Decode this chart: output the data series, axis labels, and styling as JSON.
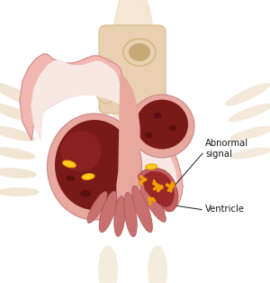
{
  "bg_color": "#ffffff",
  "heart_pink": "#f0b8b0",
  "heart_pink_light": "#f5ccc8",
  "heart_wall": "#e8a8a0",
  "chamber_dark_red": "#7a1a18",
  "chamber_med_red": "#9a2820",
  "chamber_fill": "#b84040",
  "pink_wall": "#dda0a0",
  "muscle_red": "#c05050",
  "muscle_dark": "#8a2828",
  "vessel_cream": "#e8d0b0",
  "vessel_inner": "#c8a878",
  "vessel_rim": "#d4b888",
  "yellow_signal": "#f0a000",
  "yellow_bright": "#ffcc20",
  "label_color": "#1a1a1a",
  "spine_light": "#f0e0c8",
  "spine_mid": "#e8d0b0",
  "text_abnormal": "Abnormal\nsignal",
  "text_ventricle": "Ventricle"
}
